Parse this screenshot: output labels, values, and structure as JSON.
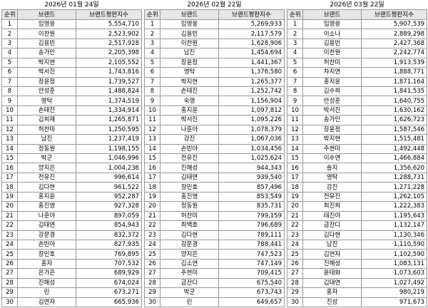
{
  "columns": [
    "순위",
    "브랜드",
    "브랜드평판지수"
  ],
  "tables": [
    {
      "date": "2026년 01월 24일",
      "rows": [
        [
          1,
          "임영웅",
          "5,554,710"
        ],
        [
          2,
          "이찬원",
          "2,523,902"
        ],
        [
          3,
          "김용빈",
          "2,517,928"
        ],
        [
          4,
          "송가인",
          "2,205,398"
        ],
        [
          5,
          "박지현",
          "2,105,552"
        ],
        [
          6,
          "박서진",
          "1,743,816"
        ],
        [
          7,
          "장윤정",
          "1,739,527"
        ],
        [
          8,
          "안성훈",
          "1,488,824"
        ],
        [
          9,
          "영탁",
          "1,374,519"
        ],
        [
          10,
          "손태진",
          "1,334,914"
        ],
        [
          11,
          "김희재",
          "1,265,871"
        ],
        [
          12,
          "허찬미",
          "1,250,595"
        ],
        [
          13,
          "남진",
          "1,237,419"
        ],
        [
          14,
          "정동원",
          "1,198,155"
        ],
        [
          15,
          "박군",
          "1,046,996"
        ],
        [
          16,
          "양지은",
          "1,004,236"
        ],
        [
          17,
          "전유진",
          "996,614"
        ],
        [
          18,
          "김다현",
          "961,522"
        ],
        [
          19,
          "홍지윤",
          "952,287"
        ],
        [
          20,
          "홍진영",
          "927,328"
        ],
        [
          21,
          "나훈아",
          "897,059"
        ],
        [
          22,
          "김태연",
          "854,943"
        ],
        [
          23,
          "강문경",
          "832,372"
        ],
        [
          24,
          "손빈아",
          "827,935"
        ],
        [
          25,
          "장민호",
          "769,895"
        ],
        [
          26,
          "홍자",
          "707,532"
        ],
        [
          27,
          "은가은",
          "689,929"
        ],
        [
          28,
          "진해성",
          "674,024"
        ],
        [
          29,
          "린",
          "673,271"
        ],
        [
          30,
          "김연자",
          "665,936"
        ]
      ]
    },
    {
      "date": "2026년 02월 22일",
      "rows": [
        [
          1,
          "임영웅",
          "5,269,933"
        ],
        [
          2,
          "김용빈",
          "2,117,579"
        ],
        [
          3,
          "이찬원",
          "1,628,906"
        ],
        [
          4,
          "남진",
          "1,454,694"
        ],
        [
          5,
          "장윤정",
          "1,441,367"
        ],
        [
          6,
          "영탁",
          "1,376,580"
        ],
        [
          7,
          "박지현",
          "1,265,377"
        ],
        [
          8,
          "손태진",
          "1,252,742"
        ],
        [
          9,
          "숙행",
          "1,156,904"
        ],
        [
          10,
          "홍지윤",
          "1,097,812"
        ],
        [
          11,
          "박서진",
          "1,095,226"
        ],
        [
          12,
          "나훈아",
          "1,078,379"
        ],
        [
          13,
          "강진",
          "1,067,036"
        ],
        [
          14,
          "손빈아",
          "1,034,456"
        ],
        [
          15,
          "전유진",
          "1,025,624"
        ],
        [
          16,
          "진해성",
          "944,343"
        ],
        [
          17,
          "김태연",
          "939,540"
        ],
        [
          18,
          "장민호",
          "857,496"
        ],
        [
          19,
          "홍진영",
          "853,549"
        ],
        [
          20,
          "정동원",
          "835,731"
        ],
        [
          21,
          "허찬미",
          "799,159"
        ],
        [
          22,
          "최백호",
          "796,689"
        ],
        [
          23,
          "김다현",
          "789,111"
        ],
        [
          24,
          "강문경",
          "788,441"
        ],
        [
          25,
          "양지은",
          "747,523"
        ],
        [
          26,
          "김소연",
          "747,149"
        ],
        [
          27,
          "주현미",
          "709,415"
        ],
        [
          28,
          "금잔디",
          "675,540"
        ],
        [
          29,
          "박군",
          "673,743"
        ],
        [
          30,
          "린",
          "649,657"
        ]
      ]
    },
    {
      "date": "2026년 03월 22일",
      "rows": [
        [
          1,
          "임영웅",
          "5,907,539"
        ],
        [
          2,
          "이소나",
          "2,889,298"
        ],
        [
          3,
          "김용빈",
          "2,427,368"
        ],
        [
          4,
          "이찬원",
          "2,242,774"
        ],
        [
          5,
          "허찬미",
          "1,913,539"
        ],
        [
          6,
          "차지연",
          "1,888,771"
        ],
        [
          7,
          "홍지윤",
          "1,871,164"
        ],
        [
          8,
          "김수희",
          "1,841,535"
        ],
        [
          9,
          "안성훈",
          "1,640,755"
        ],
        [
          10,
          "박서진",
          "1,630,162"
        ],
        [
          11,
          "송가인",
          "1,626,723"
        ],
        [
          12,
          "장윤정",
          "1,587,546"
        ],
        [
          13,
          "박지현",
          "1,515,481"
        ],
        [
          14,
          "주현미",
          "1,492,448"
        ],
        [
          15,
          "이수연",
          "1,466,884"
        ],
        [
          16,
          "솔지",
          "1,356,620"
        ],
        [
          17,
          "영탁",
          "1,288,731"
        ],
        [
          18,
          "강진",
          "1,271,228"
        ],
        [
          19,
          "전유진",
          "1,262,105"
        ],
        [
          20,
          "최진희",
          "1,222,383"
        ],
        [
          21,
          "태진아",
          "1,195,643"
        ],
        [
          22,
          "금잔디",
          "1,132,147"
        ],
        [
          23,
          "김다현",
          "1,130,346"
        ],
        [
          24,
          "남진",
          "1,110,590"
        ],
        [
          25,
          "김연자",
          "1,102,590"
        ],
        [
          26,
          "진해성",
          "1,083,131"
        ],
        [
          27,
          "윤태화",
          "1,073,603"
        ],
        [
          28,
          "김태연",
          "1,027,492"
        ],
        [
          29,
          "홍자",
          "980,219"
        ],
        [
          30,
          "진성",
          "971,673"
        ]
      ]
    }
  ]
}
